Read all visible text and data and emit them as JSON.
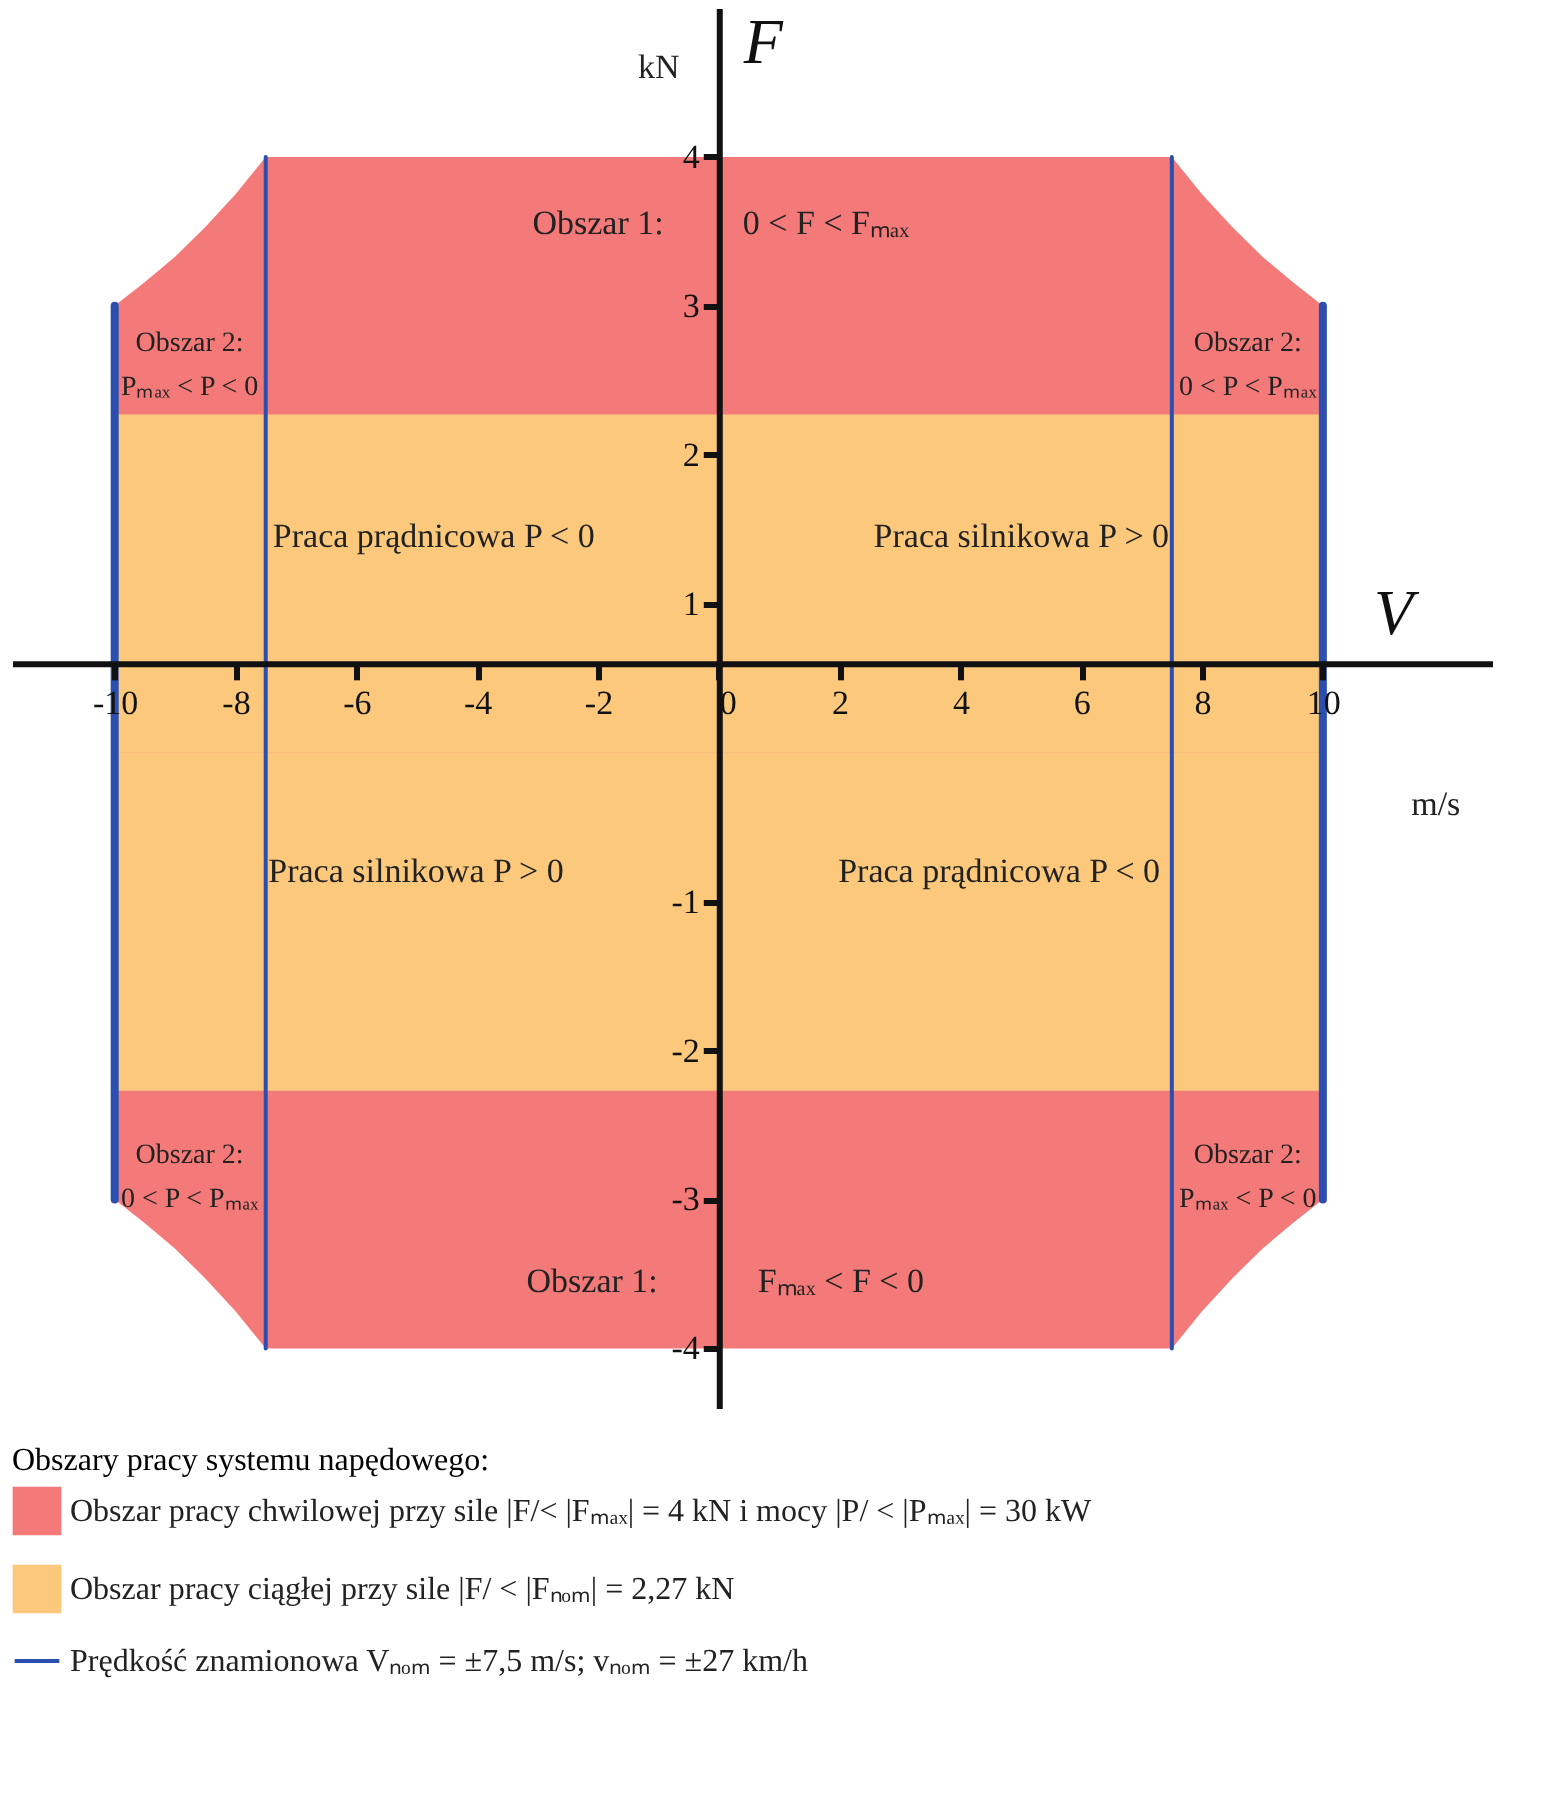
{
  "chart_data": {
    "type": "area",
    "xlabel": "V",
    "ylabel": "F",
    "legend_title": "Obszary pracy systemu napędowego:",
    "xlim": [
      -11.7,
      12.8
    ],
    "ylim": [
      -4.4,
      5
    ],
    "xticks": [
      -10,
      -8,
      -6,
      -4,
      -2,
      0,
      2,
      4,
      6,
      8,
      10
    ],
    "yticks": [
      -4,
      -3,
      -2,
      -1,
      1,
      2,
      3,
      4
    ],
    "grid": false,
    "legend": "bottom",
    "series": [
      {
        "name": "Obszar pracy chwilowej przy sile |F/< |Fₘₐₓ| = 4 kN i mocy |P/ < |Pₘₐₓ| = 30 kW",
        "color": "#f47a7a",
        "x": [
          -10,
          -9.5,
          -9,
          -8.5,
          -8,
          -7.5,
          7.5,
          8,
          8.5,
          9,
          9.5,
          10
        ],
        "values": [
          3,
          3.16,
          3.33,
          3.53,
          3.75,
          4,
          4,
          3.75,
          3.53,
          3.33,
          3.16,
          3
        ]
      },
      {
        "color": "#f47a7a",
        "x": [
          -10,
          -9.5,
          -9,
          -8.5,
          -8,
          -7.5,
          7.5,
          8,
          8.5,
          9,
          9.5,
          10
        ],
        "values": [
          -3,
          -3.16,
          -3.33,
          -3.53,
          -3.75,
          -4,
          -4,
          -3.75,
          -3.53,
          -3.33,
          -3.16,
          -3
        ]
      },
      {
        "name": "Obszar pracy ciągłej przy sile |F/ < |Fₙₒₘ| = 2,27 kN",
        "color": "#fcc97c",
        "x": [
          -10,
          10
        ],
        "values": [
          2.27,
          2.27
        ]
      },
      {
        "color": "#fcc97c",
        "x": [
          -10,
          10
        ],
        "values": [
          -2.27,
          -2.27
        ]
      },
      {
        "type": "line",
        "color": "#2a4fb0",
        "x": [
          -10,
          -10,
          0,
          10,
          10
        ],
        "values": [
          -3,
          3,
          null,
          -3,
          3
        ]
      },
      {
        "name": "Prędkość znamionowa  Vₙₒₘ  =  ±7,5 m/s;  vₙₒₘ = ±27 km/h",
        "type": "line",
        "color": "#2a4fb0",
        "x": [
          -7.5,
          -7.5,
          0,
          7.5,
          7.5
        ],
        "values": [
          -4,
          4,
          null,
          -4,
          4
        ]
      }
    ],
    "annotations": [
      "Obszar 1:",
      "0 < F < Fₘₐₓ",
      "Obszar 1:",
      "Fₘₐₓ < F < 0",
      "Obszar 2:\nPₘₐₓ < P < 0",
      "Obszar 2:\n0 < P < Pₘₐₓ",
      "Obszar 2:\n0 < P < Pₘₐₓ",
      "Obszar 2:\nPₘₐₓ < P < 0",
      "Praca prądnicowa  P < 0",
      "Praca silnikowa  P > 0",
      "Praca silnikowa  P > 0",
      "Praca prądnicowa  P < 0",
      "m/s",
      "kN"
    ]
  }
}
